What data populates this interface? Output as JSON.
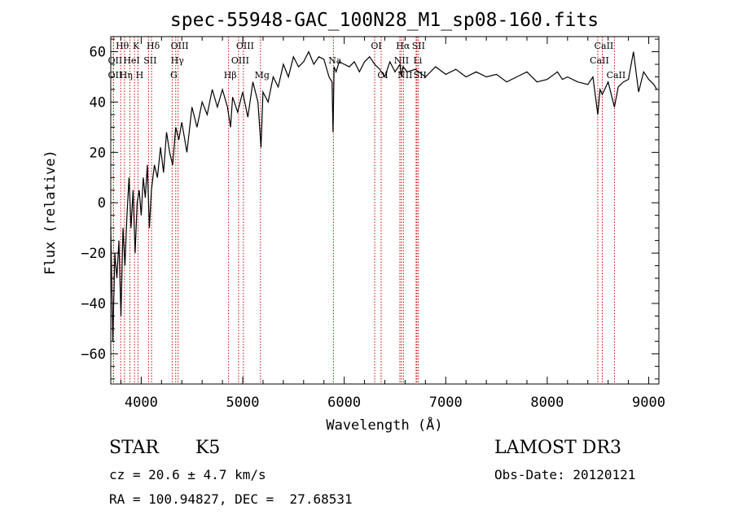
{
  "chart_data": {
    "type": "line",
    "title": "spec-55948-GAC_100N28_M1_sp08-160.fits",
    "xlabel": "Wavelength (Å)",
    "ylabel": "Flux (relative)",
    "xlim": [
      3700,
      9100
    ],
    "ylim": [
      -72,
      66
    ],
    "xticks": [
      4000,
      5000,
      6000,
      7000,
      8000,
      9000
    ],
    "xtick_labels": [
      "4000",
      "5000",
      "6000",
      "7000",
      "8000",
      "9000"
    ],
    "yticks": [
      -60,
      -40,
      -20,
      0,
      20,
      40,
      60
    ],
    "ytick_labels": [
      "−60",
      "−40",
      "−20",
      "0",
      "20",
      "40",
      "60"
    ],
    "series": [
      {
        "name": "flux",
        "x": [
          3700,
          3720,
          3740,
          3760,
          3780,
          3800,
          3820,
          3840,
          3860,
          3880,
          3900,
          3920,
          3940,
          3960,
          3980,
          4000,
          4020,
          4040,
          4060,
          4080,
          4100,
          4130,
          4160,
          4190,
          4220,
          4250,
          4280,
          4310,
          4340,
          4370,
          4400,
          4450,
          4500,
          4550,
          4600,
          4650,
          4700,
          4750,
          4800,
          4850,
          4880,
          4900,
          4950,
          5000,
          5050,
          5100,
          5150,
          5180,
          5200,
          5250,
          5300,
          5350,
          5400,
          5450,
          5500,
          5550,
          5600,
          5650,
          5700,
          5750,
          5800,
          5850,
          5880,
          5890,
          5900,
          5920,
          5950,
          6000,
          6050,
          6100,
          6150,
          6200,
          6250,
          6300,
          6350,
          6400,
          6450,
          6500,
          6550,
          6563,
          6580,
          6620,
          6700,
          6800,
          6900,
          7000,
          7100,
          7200,
          7300,
          7400,
          7500,
          7600,
          7700,
          7800,
          7900,
          8000,
          8100,
          8150,
          8200,
          8300,
          8400,
          8450,
          8498,
          8520,
          8542,
          8600,
          8662,
          8700,
          8750,
          8800,
          8850,
          8900,
          8950,
          9000,
          9050,
          9080
        ],
        "y": [
          -10,
          -55,
          -20,
          -30,
          -15,
          -45,
          -10,
          -25,
          -5,
          10,
          -10,
          5,
          -20,
          0,
          5,
          -5,
          10,
          2,
          15,
          -10,
          5,
          15,
          10,
          22,
          12,
          28,
          20,
          15,
          30,
          25,
          32,
          20,
          38,
          30,
          40,
          35,
          45,
          38,
          45,
          38,
          30,
          42,
          36,
          44,
          34,
          48,
          40,
          22,
          44,
          40,
          50,
          46,
          55,
          50,
          58,
          54,
          56,
          60,
          55,
          58,
          57,
          50,
          48,
          28,
          54,
          52,
          56,
          55,
          54,
          56,
          52,
          56,
          58,
          55,
          53,
          50,
          56,
          52,
          55,
          50,
          54,
          52,
          53,
          50,
          54,
          51,
          53,
          50,
          52,
          50,
          51,
          48,
          50,
          52,
          48,
          49,
          52,
          49,
          50,
          48,
          47,
          50,
          35,
          45,
          43,
          48,
          38,
          46,
          48,
          49,
          60,
          44,
          52,
          49,
          47,
          45
        ]
      }
    ],
    "lines": [
      {
        "name": "Hθ",
        "wavelength": 3798,
        "row": 1
      },
      {
        "name": "OII",
        "wavelength": 3727,
        "row": 2
      },
      {
        "name": "OII",
        "wavelength": 3727,
        "row": 3
      },
      {
        "name": "Hη",
        "wavelength": 3835,
        "row": 3
      },
      {
        "name": "K",
        "wavelength": 3934,
        "row": 1
      },
      {
        "name": "HeI",
        "wavelength": 3889,
        "row": 2
      },
      {
        "name": "H",
        "wavelength": 3968,
        "row": 3
      },
      {
        "name": "Hδ",
        "wavelength": 4102,
        "row": 1
      },
      {
        "name": "SII",
        "wavelength": 4072,
        "row": 2
      },
      {
        "name": "OIII",
        "wavelength": 4363,
        "row": 1
      },
      {
        "name": "Hγ",
        "wavelength": 4340,
        "row": 2
      },
      {
        "name": "G",
        "wavelength": 4305,
        "row": 3
      },
      {
        "name": "OIII",
        "wavelength": 5007,
        "row": 1
      },
      {
        "name": "OIII",
        "wavelength": 4959,
        "row": 2
      },
      {
        "name": "Hβ",
        "wavelength": 4861,
        "row": 3
      },
      {
        "name": "Mg",
        "wavelength": 5175,
        "row": 3
      },
      {
        "name": "Na",
        "wavelength": 5893,
        "row": 2
      },
      {
        "name": "OI",
        "wavelength": 6300,
        "row": 1
      },
      {
        "name": "OI",
        "wavelength": 6364,
        "row": 3
      },
      {
        "name": "Hα",
        "wavelength": 6563,
        "row": 1
      },
      {
        "name": "SII",
        "wavelength": 6716,
        "row": 1
      },
      {
        "name": "NII",
        "wavelength": 6548,
        "row": 2
      },
      {
        "name": "Li",
        "wavelength": 6708,
        "row": 2
      },
      {
        "name": "NII",
        "wavelength": 6583,
        "row": 3
      },
      {
        "name": "SII",
        "wavelength": 6731,
        "row": 3
      },
      {
        "name": "CaII",
        "wavelength": 8542,
        "row": 1
      },
      {
        "name": "CaII",
        "wavelength": 8498,
        "row": 2
      },
      {
        "name": "CaII",
        "wavelength": 8662,
        "row": 3
      }
    ],
    "line_color": "#cc0000",
    "spectrum_color": "#000000"
  },
  "info": {
    "class": "STAR",
    "subclass": "K5",
    "survey": "LAMOST DR3",
    "cz": "cz = 20.6 ± 4.7 km/s",
    "obs_date": "Obs-Date: 20120121",
    "coords": "RA = 100.94827, DEC =  27.68531"
  }
}
